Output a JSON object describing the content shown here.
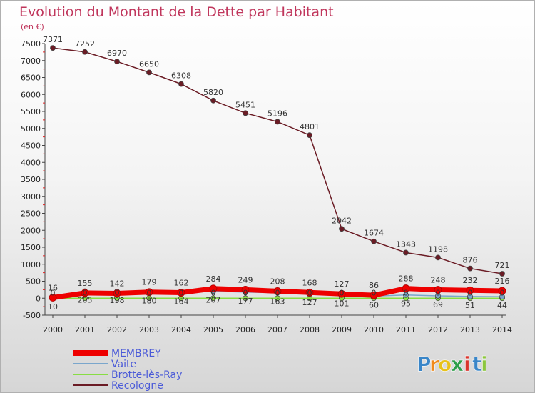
{
  "chart_data": {
    "type": "line",
    "title": "Evolution du Montant de la Dette par Habitant",
    "unit_label": "(en €)",
    "x": [
      "2000",
      "2001",
      "2002",
      "2003",
      "2004",
      "2005",
      "2006",
      "2007",
      "2008",
      "2009",
      "2010",
      "2011",
      "2012",
      "2013",
      "2014"
    ],
    "ylim": [
      -500,
      7500
    ],
    "yticks": [
      -500,
      0,
      500,
      1000,
      1500,
      2000,
      2500,
      3000,
      3500,
      4000,
      4500,
      5000,
      5500,
      6000,
      6500,
      7000,
      7500
    ],
    "grid": false,
    "legend_position": "bottom-left",
    "series": [
      {
        "name": "MEMBREY",
        "color": "#ee0000",
        "values": [
          16,
          155,
          142,
          179,
          162,
          284,
          249,
          208,
          168,
          127,
          86,
          288,
          248,
          232,
          216
        ]
      },
      {
        "name": "Vaite",
        "color": "#7aa6cc",
        "values": [
          10,
          205,
          198,
          180,
          164,
          207,
          177,
          163,
          127,
          101,
          60,
          95,
          69,
          51,
          44
        ]
      },
      {
        "name": "Brotte-lès-Ray",
        "color": "#88dd44",
        "values": [
          0,
          0,
          0,
          0,
          0,
          0,
          0,
          0,
          0,
          0,
          0,
          0,
          0,
          0,
          0
        ]
      },
      {
        "name": "Recologne",
        "color": "#6b1c25",
        "values": [
          7371,
          7252,
          6970,
          6650,
          6308,
          5820,
          5451,
          5196,
          4801,
          2042,
          1674,
          1343,
          1198,
          876,
          721
        ]
      }
    ]
  },
  "logo": {
    "letters": [
      "P",
      "r",
      "o",
      "x",
      "i",
      "t",
      "i"
    ],
    "colors": [
      "#3a86c8",
      "#f08a1c",
      "#e8c21a",
      "#2e9f4a",
      "#d9342b",
      "#3a86c8",
      "#8cc63f"
    ]
  }
}
